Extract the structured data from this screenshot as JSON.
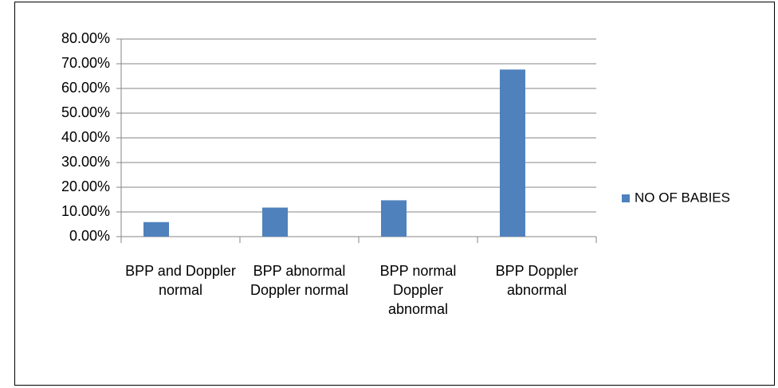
{
  "chart_data": {
    "type": "bar",
    "categories": [
      "BPP and Doppler normal",
      "BPP abnormal Doppler normal",
      "BPP normal Doppler abnormal",
      "BPP Doppler abnormal"
    ],
    "series": [
      {
        "name": "NO OF BABIES",
        "color": "#4f81bd",
        "values": [
          5.88,
          11.76,
          14.71,
          67.65
        ]
      }
    ],
    "ylim": [
      0,
      80
    ],
    "yticks": [
      {
        "value": 0,
        "label": "0.00%"
      },
      {
        "value": 10,
        "label": "10.00%"
      },
      {
        "value": 20,
        "label": "20.00%"
      },
      {
        "value": 30,
        "label": "30.00%"
      },
      {
        "value": 40,
        "label": "40.00%"
      },
      {
        "value": 50,
        "label": "50.00%"
      },
      {
        "value": 60,
        "label": "60.00%"
      },
      {
        "value": 70,
        "label": "70.00%"
      },
      {
        "value": 80,
        "label": "80.00%"
      }
    ],
    "grid": true,
    "legend": "right"
  }
}
